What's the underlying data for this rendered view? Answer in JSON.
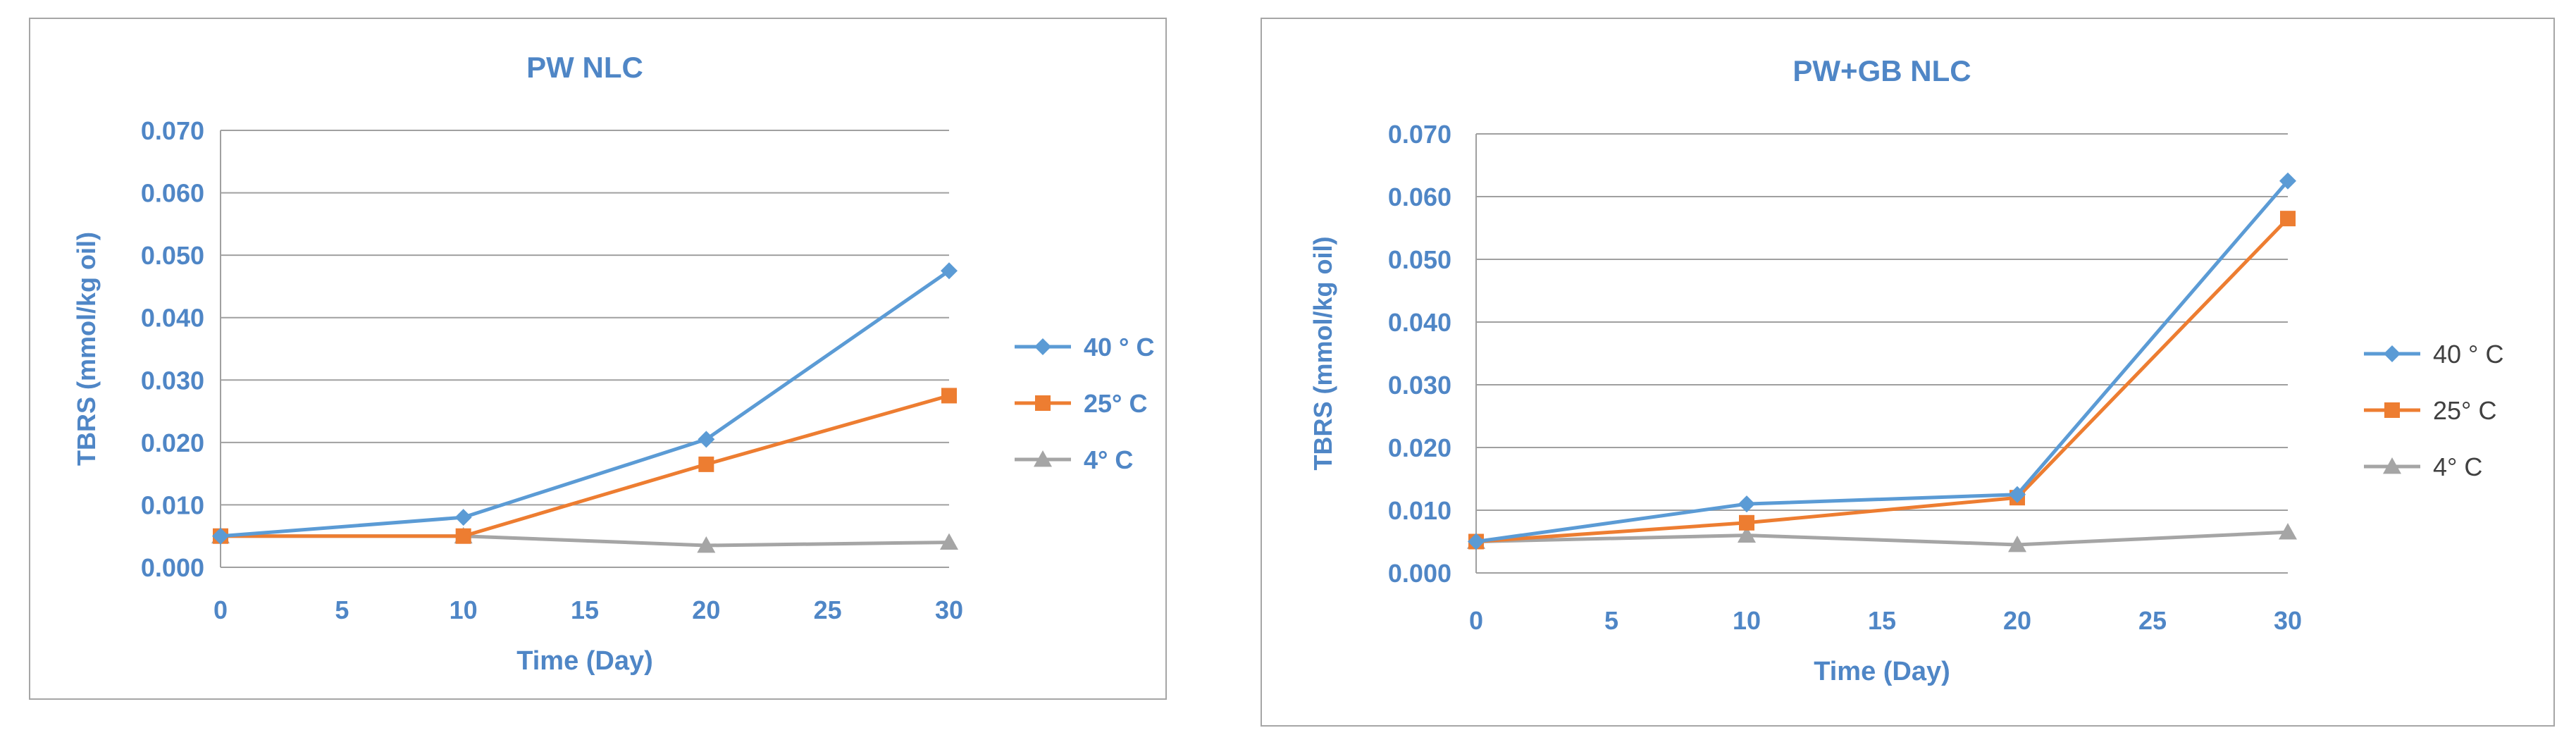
{
  "chart_data": [
    {
      "type": "line",
      "title": "PW NLC",
      "xlabel": "Time (Day)",
      "ylabel": "TBRS (mmol/kg oil)",
      "x": [
        0,
        10,
        20,
        30
      ],
      "xlim": [
        0,
        30
      ],
      "x_ticks": [
        "0",
        "5",
        "10",
        "15",
        "20",
        "25",
        "30"
      ],
      "ylim": [
        0,
        0.07
      ],
      "y_ticks": [
        "0.000",
        "0.010",
        "0.020",
        "0.030",
        "0.040",
        "0.050",
        "0.060",
        "0.070"
      ],
      "grid": true,
      "legend_position": "right",
      "series": [
        {
          "name": "40 ° C",
          "values": [
            0.005,
            0.008,
            0.0205,
            0.0475
          ],
          "color": "#5b9bd5",
          "marker": "diamond"
        },
        {
          "name": "25° C",
          "values": [
            0.005,
            0.005,
            0.0165,
            0.0275
          ],
          "color": "#ed7d31",
          "marker": "square"
        },
        {
          "name": "4° C",
          "values": [
            0.005,
            0.005,
            0.0035,
            0.004
          ],
          "color": "#a5a5a5",
          "marker": "triangle"
        }
      ]
    },
    {
      "type": "line",
      "title": "PW+GB NLC",
      "xlabel": "Time (Day)",
      "ylabel": "TBRS (mmol/kg oil)",
      "x": [
        0,
        10,
        20,
        30
      ],
      "xlim": [
        0,
        30
      ],
      "x_ticks": [
        "0",
        "5",
        "10",
        "15",
        "20",
        "25",
        "30"
      ],
      "ylim": [
        0,
        0.07
      ],
      "y_ticks": [
        "0.000",
        "0.010",
        "0.020",
        "0.030",
        "0.040",
        "0.050",
        "0.060",
        "0.070"
      ],
      "grid": true,
      "legend_position": "right",
      "series": [
        {
          "name": "40 ° C",
          "values": [
            0.005,
            0.011,
            0.0125,
            0.0625
          ],
          "color": "#5b9bd5",
          "marker": "diamond"
        },
        {
          "name": "25° C",
          "values": [
            0.005,
            0.008,
            0.012,
            0.0565
          ],
          "color": "#ed7d31",
          "marker": "square"
        },
        {
          "name": "4° C",
          "values": [
            0.005,
            0.006,
            0.0045,
            0.0065
          ],
          "color": "#a5a5a5",
          "marker": "triangle"
        }
      ]
    }
  ],
  "colors": {
    "axis_text": "#4f86c6",
    "legend_text": "#404040",
    "gridline": "#a0a0a0",
    "frame": "#a6a6a6"
  }
}
